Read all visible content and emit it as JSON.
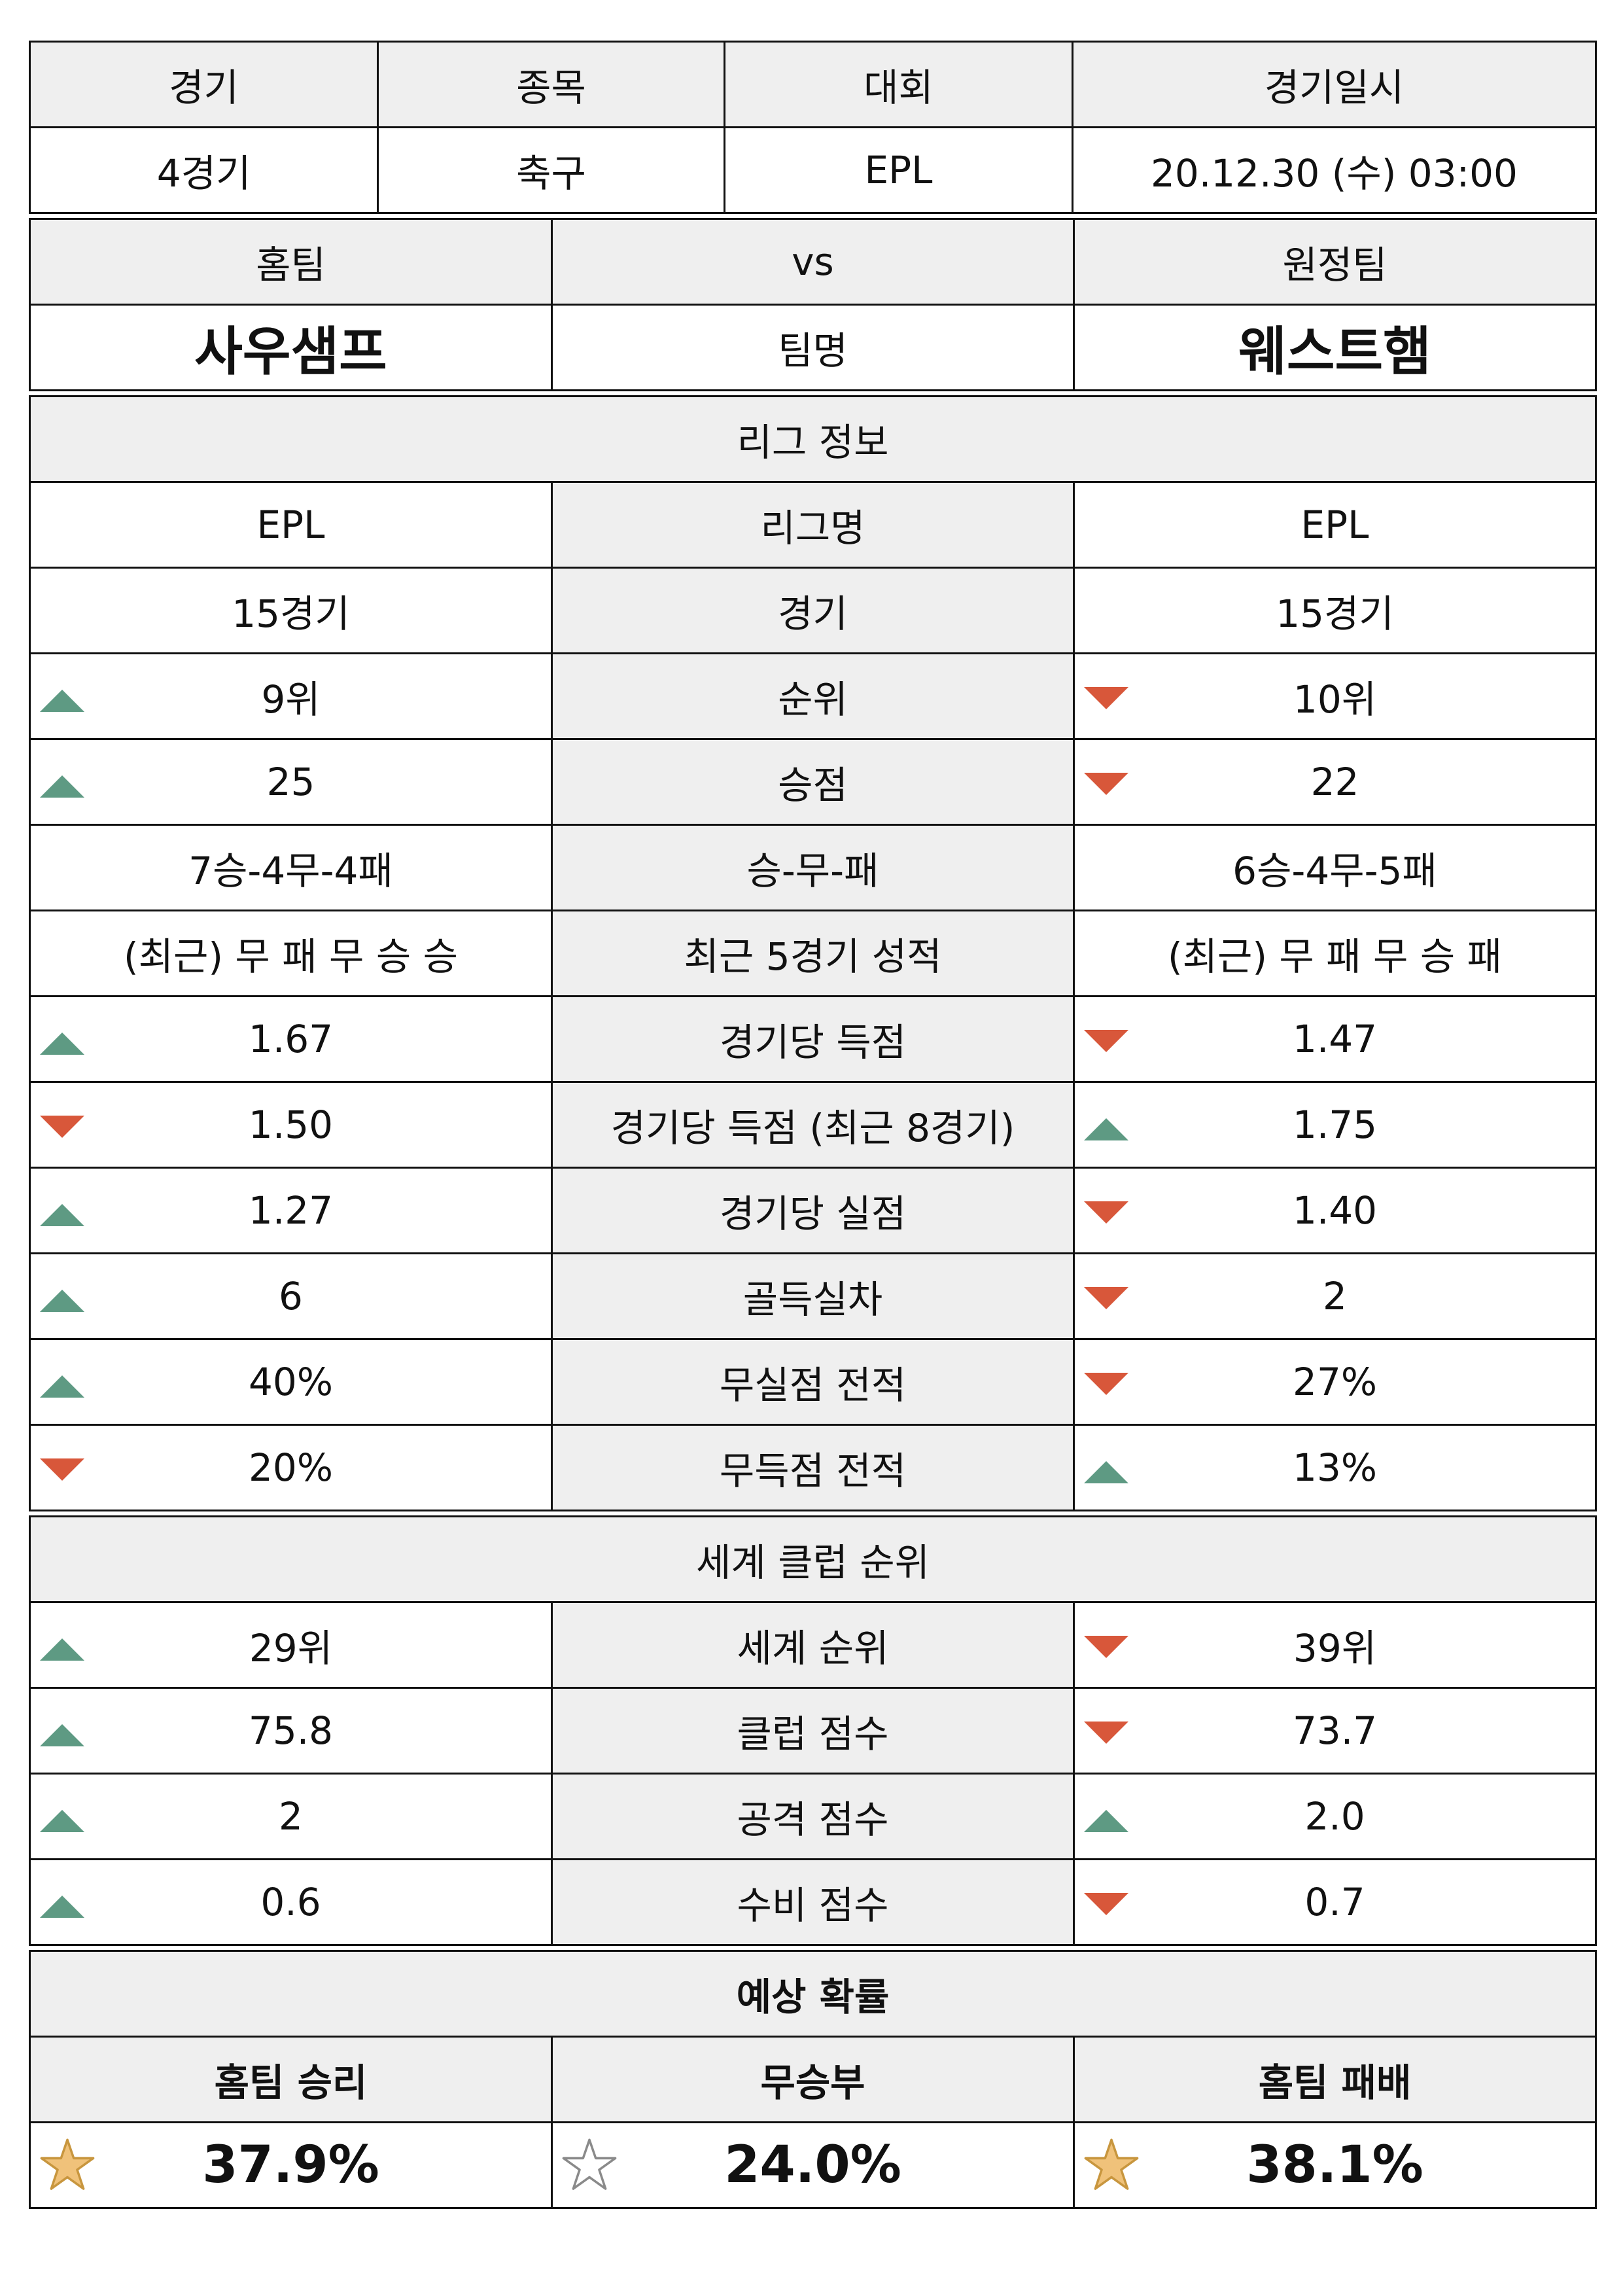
{
  "match_info": {
    "headers": [
      "경기",
      "종목",
      "대회",
      "경기일시"
    ],
    "values": [
      "4경기",
      "축구",
      "EPL",
      "20.12.30 (수) 03:00"
    ]
  },
  "teams": {
    "home_label": "홈팀",
    "vs_label": "vs",
    "away_label": "원정팀",
    "home_name": "사우샘프",
    "center_label": "팀명",
    "away_name": "웨스트햄"
  },
  "league_section": {
    "title": "리그 정보",
    "rows": [
      {
        "home": "EPL",
        "label": "리그명",
        "away": "EPL",
        "home_arrow": "",
        "away_arrow": ""
      },
      {
        "home": "15경기",
        "label": "경기",
        "away": "15경기",
        "home_arrow": "",
        "away_arrow": ""
      },
      {
        "home": "9위",
        "label": "순위",
        "away": "10위",
        "home_arrow": "up",
        "away_arrow": "down"
      },
      {
        "home": "25",
        "label": "승점",
        "away": "22",
        "home_arrow": "up",
        "away_arrow": "down"
      },
      {
        "home": "7승-4무-4패",
        "label": "승-무-패",
        "away": "6승-4무-5패",
        "home_arrow": "",
        "away_arrow": ""
      },
      {
        "home": "(최근) 무 패 무 승 승",
        "label": "최근 5경기 성적",
        "away": "(최근) 무 패 무 승 패",
        "home_arrow": "",
        "away_arrow": ""
      },
      {
        "home": "1.67",
        "label": "경기당 득점",
        "away": "1.47",
        "home_arrow": "up",
        "away_arrow": "down"
      },
      {
        "home": "1.50",
        "label": "경기당 득점 (최근 8경기)",
        "away": "1.75",
        "home_arrow": "down",
        "away_arrow": "up"
      },
      {
        "home": "1.27",
        "label": "경기당 실점",
        "away": "1.40",
        "home_arrow": "up",
        "away_arrow": "down"
      },
      {
        "home": "6",
        "label": "골득실차",
        "away": "2",
        "home_arrow": "up",
        "away_arrow": "down"
      },
      {
        "home": "40%",
        "label": "무실점 전적",
        "away": "27%",
        "home_arrow": "up",
        "away_arrow": "down"
      },
      {
        "home": "20%",
        "label": "무득점 전적",
        "away": "13%",
        "home_arrow": "down",
        "away_arrow": "up"
      }
    ]
  },
  "world_section": {
    "title": "세계 클럽 순위",
    "rows": [
      {
        "home": "29위",
        "label": "세계 순위",
        "away": "39위",
        "home_arrow": "up",
        "away_arrow": "down"
      },
      {
        "home": "75.8",
        "label": "클럽 점수",
        "away": "73.7",
        "home_arrow": "up",
        "away_arrow": "down"
      },
      {
        "home": "2",
        "label": "공격 점수",
        "away": "2.0",
        "home_arrow": "up",
        "away_arrow": "up"
      },
      {
        "home": "0.6",
        "label": "수비 점수",
        "away": "0.7",
        "home_arrow": "up",
        "away_arrow": "down"
      }
    ]
  },
  "prediction": {
    "title": "예상 확률",
    "labels": [
      "홈팀 승리",
      "무승부",
      "홈팀 패배"
    ],
    "values": [
      "37.9%",
      "24.0%",
      "38.1%"
    ],
    "stars": [
      "filled",
      "empty",
      "filled"
    ]
  },
  "colors": {
    "up": "#5e9a83",
    "down": "#d8573a",
    "header_bg": "#efefef",
    "star_fill": "#f0c27a"
  }
}
